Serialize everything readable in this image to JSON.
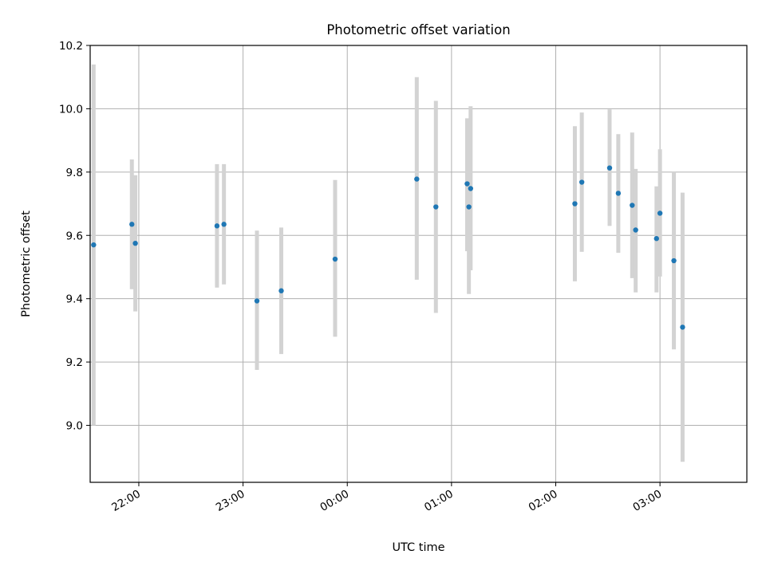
{
  "chart_data": {
    "type": "scatter",
    "title": "Photometric offset variation",
    "xlabel": "UTC time",
    "ylabel": "Photometric offset",
    "x_unit": "UTC",
    "xlim": [
      "21:32",
      "03:50"
    ],
    "ylim": [
      8.82,
      10.2
    ],
    "x_ticks": [
      "22:00",
      "23:00",
      "00:00",
      "01:00",
      "02:00",
      "03:00"
    ],
    "y_ticks": [
      9.0,
      9.2,
      9.4,
      9.6,
      9.8,
      10.0,
      10.2
    ],
    "y_tick_labels": [
      "9.0",
      "9.2",
      "9.4",
      "9.6",
      "9.8",
      "10.0",
      "10.2"
    ],
    "grid": true,
    "colors": {
      "marker": "#1f77b4",
      "errorbar": "#d3d3d3",
      "grid": "#b0b0b0"
    },
    "points": [
      {
        "x": "21:34",
        "y": 9.57,
        "y_low": 9.0,
        "y_high": 10.14
      },
      {
        "x": "21:56",
        "y": 9.635,
        "y_low": 9.43,
        "y_high": 9.84
      },
      {
        "x": "21:58",
        "y": 9.575,
        "y_low": 9.36,
        "y_high": 9.79
      },
      {
        "x": "22:45",
        "y": 9.63,
        "y_low": 9.435,
        "y_high": 9.825
      },
      {
        "x": "22:49",
        "y": 9.635,
        "y_low": 9.445,
        "y_high": 9.825
      },
      {
        "x": "23:08",
        "y": 9.393,
        "y_low": 9.175,
        "y_high": 9.615
      },
      {
        "x": "23:22",
        "y": 9.425,
        "y_low": 9.225,
        "y_high": 9.625
      },
      {
        "x": "23:53",
        "y": 9.525,
        "y_low": 9.28,
        "y_high": 9.775
      },
      {
        "x": "00:40",
        "y": 9.778,
        "y_low": 9.46,
        "y_high": 10.1
      },
      {
        "x": "00:51",
        "y": 9.69,
        "y_low": 9.355,
        "y_high": 10.025
      },
      {
        "x": "01:09",
        "y": 9.763,
        "y_low": 9.55,
        "y_high": 9.97
      },
      {
        "x": "01:10",
        "y": 9.69,
        "y_low": 9.415,
        "y_high": 9.965
      },
      {
        "x": "01:11",
        "y": 9.748,
        "y_low": 9.49,
        "y_high": 10.008
      },
      {
        "x": "02:11",
        "y": 9.7,
        "y_low": 9.455,
        "y_high": 9.945
      },
      {
        "x": "02:15",
        "y": 9.768,
        "y_low": 9.548,
        "y_high": 9.988
      },
      {
        "x": "02:31",
        "y": 9.813,
        "y_low": 9.63,
        "y_high": 9.998
      },
      {
        "x": "02:36",
        "y": 9.733,
        "y_low": 9.545,
        "y_high": 9.92
      },
      {
        "x": "02:44",
        "y": 9.695,
        "y_low": 9.465,
        "y_high": 9.925
      },
      {
        "x": "02:46",
        "y": 9.617,
        "y_low": 9.42,
        "y_high": 9.81
      },
      {
        "x": "02:58",
        "y": 9.59,
        "y_low": 9.42,
        "y_high": 9.755
      },
      {
        "x": "03:00",
        "y": 9.67,
        "y_low": 9.47,
        "y_high": 9.872
      },
      {
        "x": "03:08",
        "y": 9.52,
        "y_low": 9.24,
        "y_high": 9.8
      },
      {
        "x": "03:13",
        "y": 9.31,
        "y_low": 8.885,
        "y_high": 9.735
      }
    ]
  }
}
